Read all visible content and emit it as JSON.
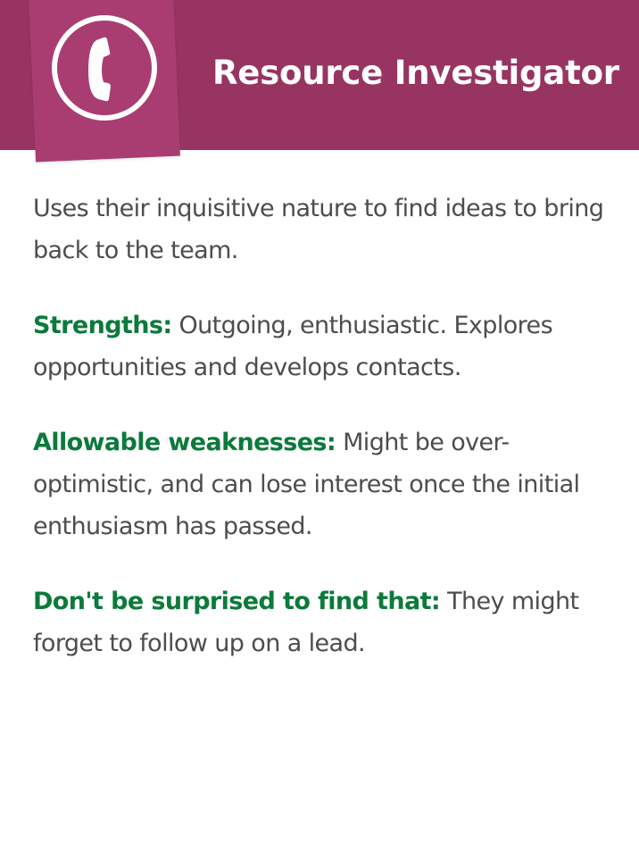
{
  "header": {
    "title": "Resource Investigator",
    "icon": "telephone-handset-icon",
    "background_color": "#973462",
    "tab_color": "#a93d72"
  },
  "content": {
    "intro": "Uses their inquisitive nature to find ideas to bring back to the team.",
    "sections": [
      {
        "label": "Strengths:",
        "text": "Outgoing, enthusiastic. Explores opportunities and develops contacts."
      },
      {
        "label": "Allowable weaknesses:",
        "text": "Might be over-optimistic, and can lose interest once the initial enthusiasm has passed."
      },
      {
        "label": "Don't be surprised to find that:",
        "text": "They might forget to follow up on a lead."
      }
    ],
    "label_color": "#0b7a3b",
    "text_color": "#4d4d4d"
  }
}
